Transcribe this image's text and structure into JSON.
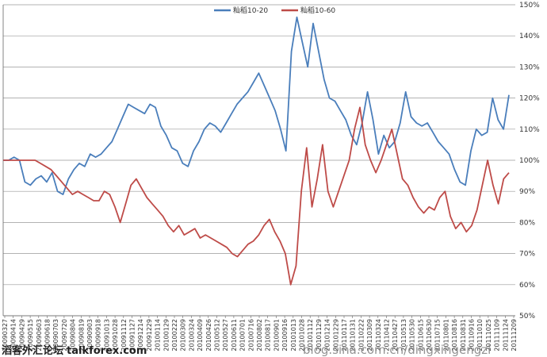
{
  "chart_data": {
    "type": "line",
    "ylim": [
      0.5,
      1.5
    ],
    "y_ticks": [
      "50%",
      "60%",
      "70%",
      "80%",
      "90%",
      "100%",
      "110%",
      "120%",
      "130%",
      "140%",
      "150%"
    ],
    "grid": true,
    "legend_position": "top",
    "x_ticks": [
      "20090327",
      "20090414",
      "20090429",
      "20090515",
      "20090603",
      "20090618",
      "20090703",
      "20090720",
      "20090804",
      "20090819",
      "20090903",
      "20090918",
      "20091013",
      "20091028",
      "20091112",
      "20091127",
      "20091214",
      "20091229",
      "20100114",
      "20100129",
      "20100222",
      "20100309",
      "20100324",
      "20100409",
      "20100426",
      "20100512",
      "20100527",
      "20100611",
      "20100701",
      "20100716",
      "20100802",
      "20100817",
      "20100901",
      "20100916",
      "20101013",
      "20101028",
      "20101112",
      "20101129",
      "20101214",
      "20101229",
      "20110117",
      "20110131",
      "20110222",
      "20110309",
      "20110324",
      "20110412",
      "20110427",
      "20110513",
      "20110530",
      "20110615",
      "20110630",
      "20110715",
      "20110801",
      "20110816",
      "20110831",
      "20110916",
      "20111010",
      "20111025",
      "20111109",
      "20111124",
      "20111209"
    ],
    "series": [
      {
        "name": "籼稻10-20",
        "color": "#4a7ebb",
        "values": [
          1.0,
          1.0,
          1.01,
          1.0,
          0.93,
          0.92,
          0.94,
          0.95,
          0.93,
          0.96,
          0.9,
          0.89,
          0.94,
          0.97,
          0.99,
          0.98,
          1.02,
          1.01,
          1.02,
          1.04,
          1.06,
          1.1,
          1.14,
          1.18,
          1.17,
          1.16,
          1.15,
          1.18,
          1.17,
          1.11,
          1.08,
          1.04,
          1.03,
          0.99,
          0.98,
          1.03,
          1.06,
          1.1,
          1.12,
          1.11,
          1.09,
          1.12,
          1.15,
          1.18,
          1.2,
          1.22,
          1.25,
          1.28,
          1.24,
          1.2,
          1.16,
          1.1,
          1.03,
          1.35,
          1.46,
          1.38,
          1.3,
          1.44,
          1.35,
          1.26,
          1.2,
          1.19,
          1.16,
          1.13,
          1.08,
          1.05,
          1.12,
          1.22,
          1.13,
          1.02,
          1.08,
          1.04,
          1.06,
          1.12,
          1.22,
          1.14,
          1.12,
          1.11,
          1.12,
          1.09,
          1.06,
          1.04,
          1.02,
          0.97,
          0.93,
          0.92,
          1.03,
          1.1,
          1.08,
          1.09,
          1.2,
          1.13,
          1.1,
          1.21
        ]
      },
      {
        "name": "籼稻10-60",
        "color": "#be4b48",
        "values": [
          1.0,
          1.0,
          1.0,
          1.0,
          1.0,
          1.0,
          1.0,
          0.99,
          0.98,
          0.97,
          0.95,
          0.93,
          0.91,
          0.89,
          0.9,
          0.89,
          0.88,
          0.87,
          0.87,
          0.9,
          0.89,
          0.85,
          0.8,
          0.86,
          0.92,
          0.94,
          0.91,
          0.88,
          0.86,
          0.84,
          0.82,
          0.79,
          0.77,
          0.79,
          0.76,
          0.77,
          0.78,
          0.75,
          0.76,
          0.75,
          0.74,
          0.73,
          0.72,
          0.7,
          0.69,
          0.71,
          0.73,
          0.74,
          0.76,
          0.79,
          0.81,
          0.77,
          0.74,
          0.7,
          0.6,
          0.66,
          0.9,
          1.04,
          0.85,
          0.94,
          1.05,
          0.9,
          0.85,
          0.9,
          0.95,
          1.0,
          1.1,
          1.17,
          1.05,
          1.0,
          0.96,
          1.0,
          1.05,
          1.1,
          1.02,
          0.94,
          0.92,
          0.88,
          0.85,
          0.83,
          0.85,
          0.84,
          0.88,
          0.9,
          0.82,
          0.78,
          0.8,
          0.77,
          0.79,
          0.84,
          0.92,
          1.0,
          0.92,
          0.86,
          0.94,
          0.96
        ]
      }
    ]
  },
  "watermark": {
    "left_text": "滔客外汇论坛",
    "site": "talkforex.com",
    "blog": "blog.sina.com.cn/dingxingengzi"
  }
}
